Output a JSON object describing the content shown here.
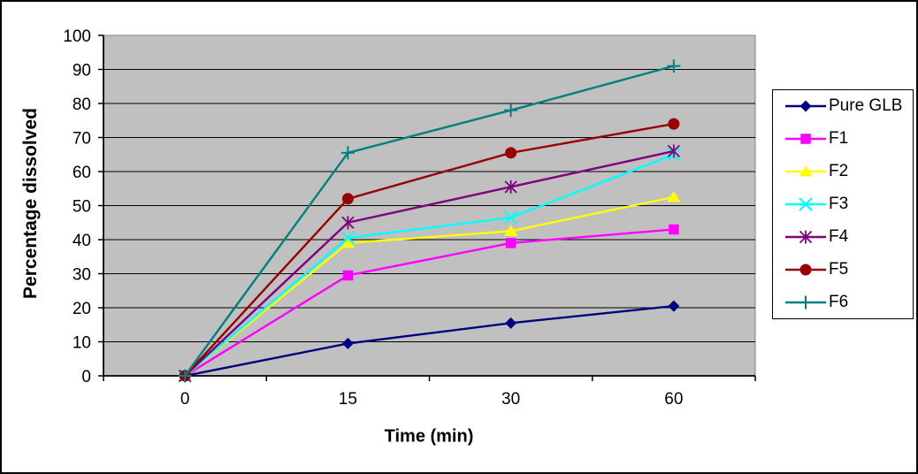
{
  "chart_data": {
    "type": "line",
    "title": "",
    "xlabel": "Time (min)",
    "ylabel": "Percentage dissolved",
    "categories": [
      0,
      15,
      30,
      60
    ],
    "x_tick_labels": [
      "0",
      "15",
      "30",
      "60"
    ],
    "y_ticks": [
      0,
      10,
      20,
      30,
      40,
      50,
      60,
      70,
      80,
      90,
      100
    ],
    "ylim": [
      0,
      100
    ],
    "grid": "horizontal",
    "gridline_color": "#000000",
    "plot_bg": "#c0c0c0",
    "plot_border_color": "#848284",
    "legend_position": "right",
    "category_axis": "between-ticks",
    "series": [
      {
        "name": "Pure GLB",
        "color": "#000080",
        "marker": "diamond",
        "values": [
          0,
          9.5,
          15.5,
          20.5
        ]
      },
      {
        "name": "F1",
        "color": "#ff00ff",
        "marker": "square",
        "values": [
          0,
          29.5,
          39,
          43
        ]
      },
      {
        "name": "F2",
        "color": "#ffff00",
        "marker": "triangle",
        "values": [
          0,
          39,
          42.5,
          52.5
        ]
      },
      {
        "name": "F3",
        "color": "#00ffff",
        "marker": "x",
        "values": [
          0,
          40.5,
          46.5,
          65
        ]
      },
      {
        "name": "F4",
        "color": "#800080",
        "marker": "asterisk",
        "values": [
          0,
          45,
          55.5,
          66
        ]
      },
      {
        "name": "F5",
        "color": "#990000",
        "marker": "circle",
        "values": [
          0,
          52,
          65.5,
          74
        ]
      },
      {
        "name": "F6",
        "color": "#008080",
        "marker": "plus",
        "values": [
          0,
          65.5,
          78,
          91
        ]
      }
    ]
  }
}
